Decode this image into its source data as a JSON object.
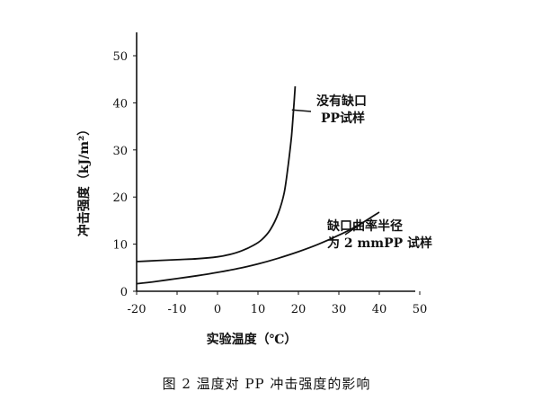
{
  "caption": "图 2   温度对 PP 冲击强度的影响",
  "chart_data": {
    "type": "line",
    "xlabel": "实验温度（℃）",
    "ylabel": "冲击强度（kJ/m²）",
    "xlim": [
      -20,
      50
    ],
    "ylim": [
      0,
      50
    ],
    "x_ticks": [
      -20,
      -10,
      0,
      10,
      20,
      30,
      40,
      50
    ],
    "y_ticks": [
      0,
      10,
      20,
      30,
      40,
      50
    ],
    "grid": false,
    "series": [
      {
        "name": "没有缺口PP试样",
        "label_lines": [
          "没有缺口",
          "PP试样"
        ],
        "x": [
          -20,
          -15,
          -10,
          -5,
          0,
          3,
          6,
          9,
          11,
          13,
          15,
          16.5,
          17.5,
          18.3,
          18.8,
          19.2
        ],
        "y": [
          6.3,
          6.5,
          6.7,
          6.9,
          7.3,
          7.8,
          8.6,
          9.8,
          11.0,
          13.0,
          16.5,
          21.0,
          27.0,
          33.0,
          38.5,
          43.5
        ]
      },
      {
        "name": "缺口曲率半径为2mmPP试样",
        "label_lines": [
          "缺口曲率半径",
          "为 2 mmPP 试样"
        ],
        "x": [
          -20,
          -15,
          -10,
          -5,
          0,
          5,
          10,
          15,
          20,
          25,
          30,
          35,
          40
        ],
        "y": [
          1.6,
          2.1,
          2.7,
          3.3,
          4.0,
          4.8,
          5.8,
          7.0,
          8.4,
          10.0,
          11.9,
          14.1,
          16.8
        ]
      }
    ]
  }
}
